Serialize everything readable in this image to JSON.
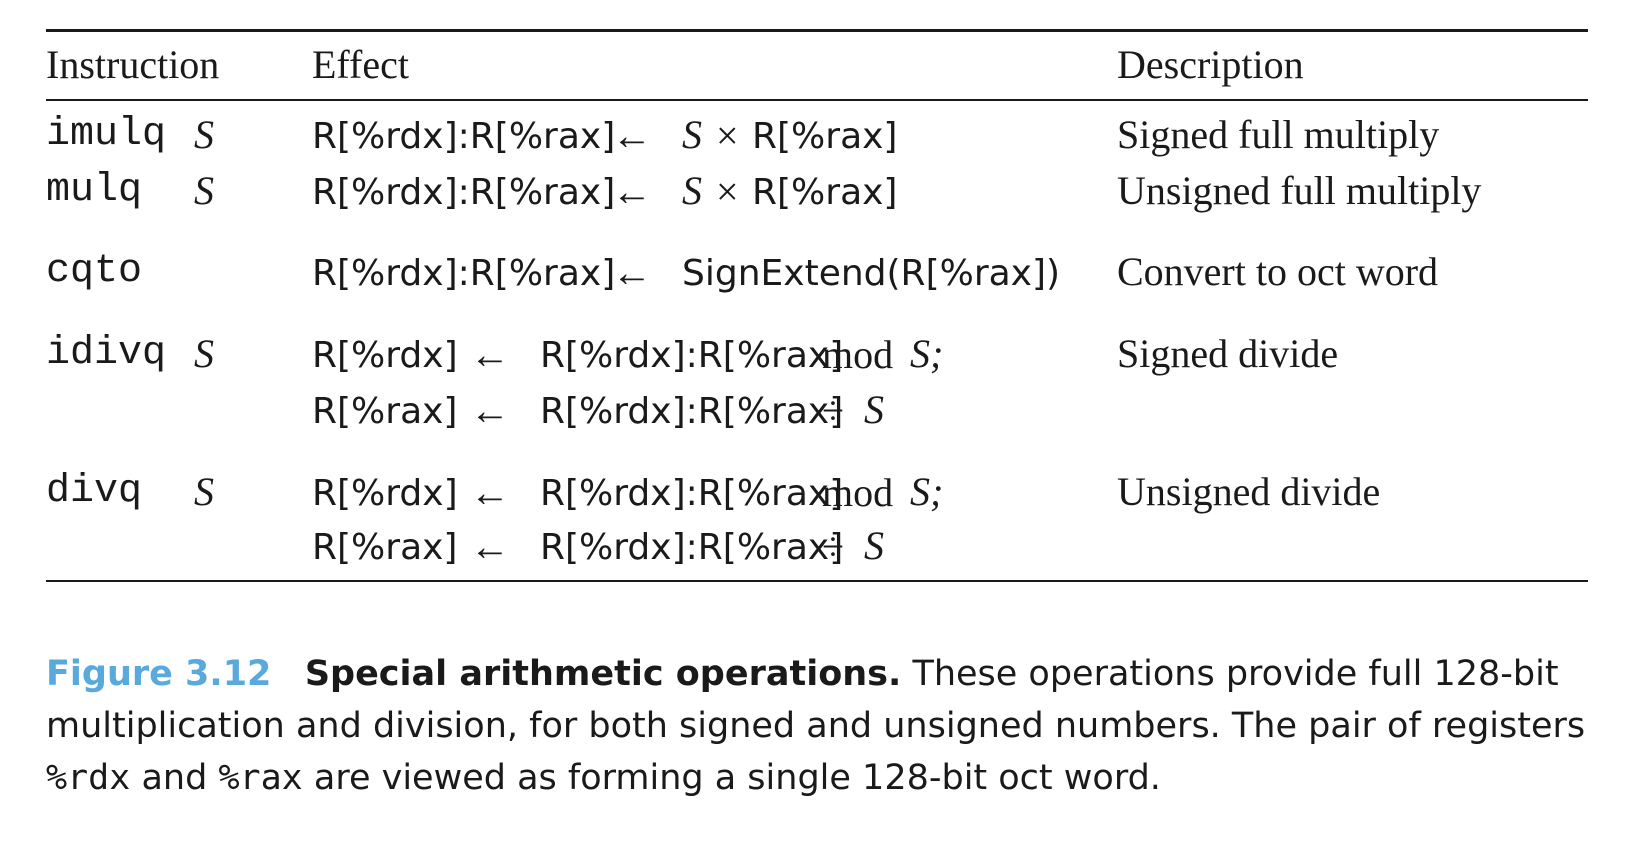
{
  "headers": {
    "instruction": "Instruction",
    "effect": "Effect",
    "description": "Description"
  },
  "rows": [
    {
      "instr": "imulq",
      "operand": "S",
      "lines": [
        {
          "dest": "R[%rdx]:R[%rax]",
          "arrow": "←",
          "src_pre": "S",
          "op": "×",
          "src": "R[%rax]",
          "tail": ""
        }
      ],
      "description": "Signed full multiply"
    },
    {
      "instr": "mulq",
      "operand": "S",
      "lines": [
        {
          "dest": "R[%rdx]:R[%rax]",
          "arrow": "←",
          "src_pre": "S",
          "op": "×",
          "src": "R[%rax]",
          "tail": ""
        }
      ],
      "description": "Unsigned full multiply"
    },
    {
      "instr": "cqto",
      "operand": "",
      "lines": [
        {
          "dest": "R[%rdx]:R[%rax]",
          "arrow": "←",
          "src": "SignExtend(R[%rax])"
        }
      ],
      "description": "Convert to oct word"
    },
    {
      "instr": "idivq",
      "operand": "S",
      "lines": [
        {
          "dest": "R[%rdx]",
          "arrow": "←",
          "src": "R[%rdx]:R[%rax]",
          "op": "mod",
          "tail": "S;"
        },
        {
          "dest": "R[%rax]",
          "arrow": "←",
          "src": "R[%rdx]:R[%rax]",
          "op": "÷",
          "tail": "S"
        }
      ],
      "description": "Signed divide"
    },
    {
      "instr": "divq",
      "operand": "S",
      "lines": [
        {
          "dest": "R[%rdx]",
          "arrow": "←",
          "src": "R[%rdx]:R[%rax]",
          "op": "mod",
          "tail": "S;"
        },
        {
          "dest": "R[%rax]",
          "arrow": "←",
          "src": "R[%rdx]:R[%rax]",
          "op": "÷",
          "tail": "S"
        }
      ],
      "description": "Unsigned divide"
    }
  ],
  "caption": {
    "figure_number": "Figure 3.12",
    "title": "Special arithmetic operations.",
    "text_1": "These operations provide full 128-bit multiplication and division, for both signed and unsigned numbers. The pair of registers",
    "reg_1": "%rdx",
    "text_2": "and",
    "reg_2": "%rax",
    "text_3": "are viewed as forming a single 128-bit oct word."
  },
  "colors": {
    "figure_number": "#5aa9dc",
    "text": "#1a1a1a"
  }
}
